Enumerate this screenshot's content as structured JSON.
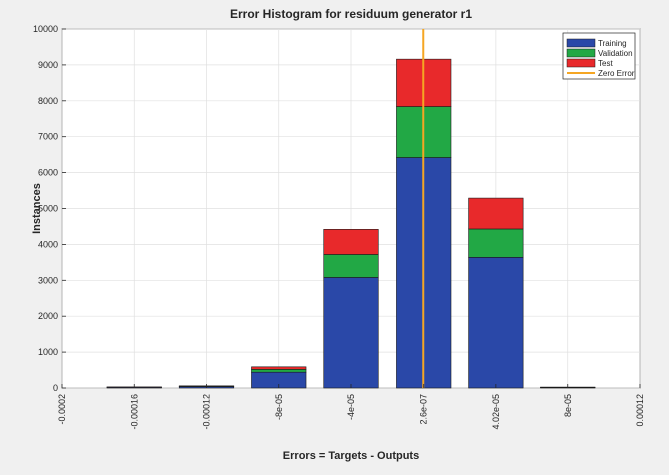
{
  "chart_data": {
    "type": "bar",
    "stacked": true,
    "title": "Error Histogram for residuum generator r1",
    "xlabel": "Errors = Targets - Outputs",
    "ylabel": "Instances",
    "ylim": [
      0,
      10000
    ],
    "yticks": [
      0,
      1000,
      2000,
      3000,
      4000,
      5000,
      6000,
      7000,
      8000,
      9000,
      10000
    ],
    "xlim": [
      -0.0002,
      0.00012
    ],
    "xticks": [
      {
        "value": -0.0002,
        "label": "-0.0002"
      },
      {
        "value": -0.00016,
        "label": "-0.00016"
      },
      {
        "value": -0.00012,
        "label": "-0.00012"
      },
      {
        "value": -8e-05,
        "label": "-8e-05"
      },
      {
        "value": -4e-05,
        "label": "-4e-05"
      },
      {
        "value": 2.6e-07,
        "label": "2.6e-07"
      },
      {
        "value": 4.02e-05,
        "label": "4.02e-05"
      },
      {
        "value": 8e-05,
        "label": "8e-05"
      },
      {
        "value": 0.00012,
        "label": "0.00012"
      }
    ],
    "bin_centers": [
      -0.00016,
      -0.00012,
      -8e-05,
      -4e-05,
      2.6e-07,
      4.02e-05,
      8e-05
    ],
    "bin_width": 3.02e-05,
    "series": [
      {
        "name": "Training",
        "color": "#2a48a8",
        "values": [
          20,
          40,
          440,
          3080,
          6420,
          3640,
          15
        ]
      },
      {
        "name": "Validation",
        "color": "#22a845",
        "values": [
          5,
          10,
          80,
          640,
          1420,
          790,
          5
        ]
      },
      {
        "name": "Test",
        "color": "#e8292b",
        "values": [
          5,
          10,
          70,
          700,
          1320,
          860,
          5
        ]
      }
    ],
    "zero_error": {
      "name": "Zero Error",
      "color": "#f5a623",
      "x": 0
    },
    "legend_position": "top-right",
    "grid": true
  }
}
